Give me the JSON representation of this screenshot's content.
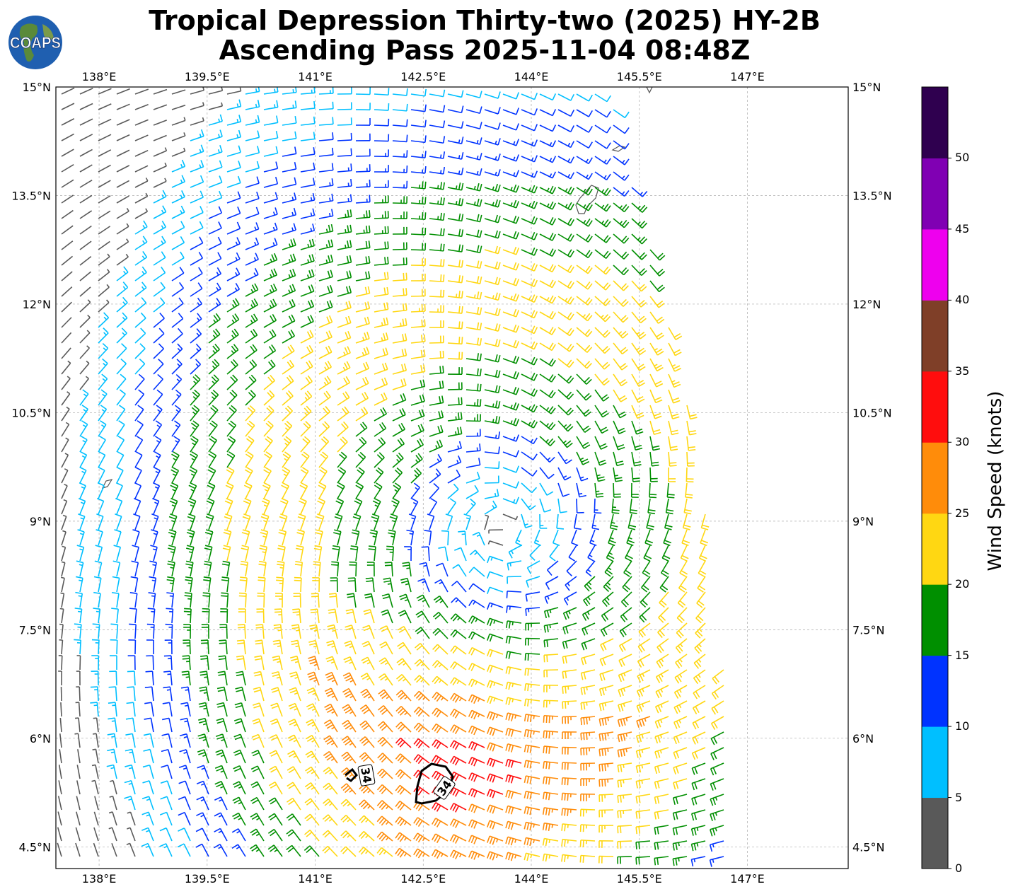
{
  "title_line1": "Tropical Depression Thirty-two (2025) HY-2B",
  "title_line2": "Ascending Pass 2025-11-04 08:48Z",
  "logo_text": "COAPS",
  "lon_ticks": [
    "138°E",
    "139.5°E",
    "141°E",
    "142.5°E",
    "144°E",
    "145.5°E",
    "147°E"
  ],
  "lat_ticks": [
    "15°N",
    "13.5°N",
    "12°N",
    "10.5°N",
    "9°N",
    "7.5°N",
    "6°N",
    "4.5°N"
  ],
  "colorbar": {
    "label": "Wind Speed (knots)",
    "ticks": [
      "0",
      "5",
      "10",
      "15",
      "20",
      "25",
      "30",
      "35",
      "40",
      "45",
      "50"
    ],
    "colors": [
      "#595959",
      "#00bfff",
      "#0033ff",
      "#008f00",
      "#ffd712",
      "#ff8c0a",
      "#ff0d0d",
      "#7f3f28",
      "#ee00ee",
      "#8000b3",
      "#2f004f"
    ]
  },
  "contour_labels": [
    "34",
    "34"
  ],
  "chart_data": {
    "type": "wind-barb map",
    "lon_range": [
      137.4,
      148.4
    ],
    "lat_range": [
      4.2,
      15.0
    ],
    "center": [
      143.6,
      8.9
    ],
    "wind_units": "knots",
    "contour_34kt_centers": [
      [
        141.6,
        5.45
      ],
      [
        142.75,
        5.35
      ]
    ]
  }
}
